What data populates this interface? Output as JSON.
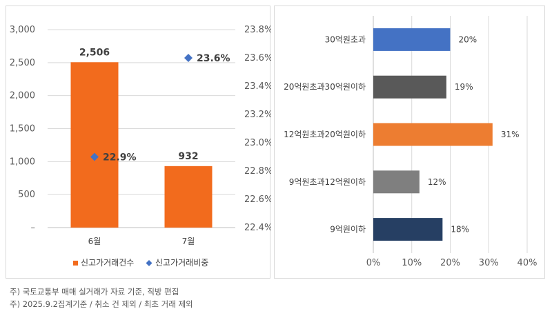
{
  "chart_data": [
    {
      "type": "bar",
      "categories": [
        "6월",
        "7월"
      ],
      "series": [
        {
          "name": "신고가거래건수",
          "axis": "left",
          "mark": "bar",
          "color": "#f26b1d",
          "values": [
            2506,
            932
          ],
          "labels": [
            "2,506",
            "932"
          ]
        },
        {
          "name": "신고가거래비중",
          "axis": "right",
          "mark": "point",
          "color": "#4472c4",
          "values": [
            22.9,
            23.6
          ],
          "labels": [
            "22.9%",
            "23.6%"
          ]
        }
      ],
      "ylim": [
        0,
        3000
      ],
      "y_ticks": [
        "–",
        "500",
        "1,000",
        "1,500",
        "2,000",
        "2,500",
        "3,000"
      ],
      "y2lim": [
        22.4,
        23.8
      ],
      "y2_ticks": [
        "22.4%",
        "22.6%",
        "22.8%",
        "23.0%",
        "23.2%",
        "23.4%",
        "23.6%",
        "23.8%"
      ],
      "grid": true,
      "legend": "bottom"
    },
    {
      "type": "bar",
      "orientation": "horizontal",
      "categories": [
        "30억원초과",
        "20억원초과30억원이하",
        "12억원초과20억원이하",
        "9억원초과12억원이하",
        "9억원이하"
      ],
      "values": [
        20,
        19,
        31,
        12,
        18
      ],
      "labels": [
        "20%",
        "19%",
        "31%",
        "12%",
        "18%"
      ],
      "colors": [
        "#4472c4",
        "#595959",
        "#ed7d31",
        "#7f7f7f",
        "#263f63"
      ],
      "xlim": [
        0,
        40
      ],
      "x_ticks": [
        "0%",
        "10%",
        "20%",
        "30%",
        "40%"
      ],
      "grid": true
    }
  ],
  "notes": [
    "주) 국토교통부 매매 실거래가 자료 기준, 직방 편집",
    "주) 2025.9.2집계기준 / 취소 건 제외 / 최초 거래 제외"
  ]
}
